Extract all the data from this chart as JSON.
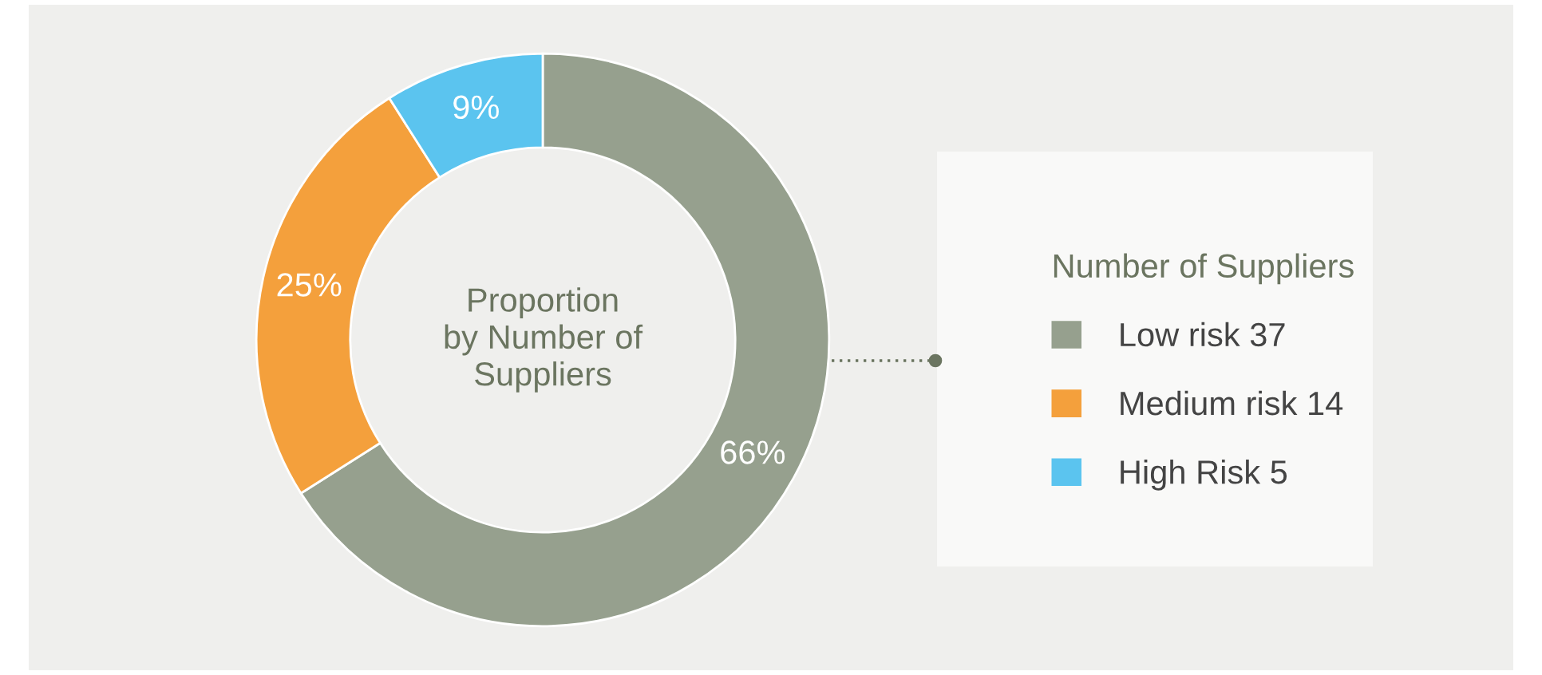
{
  "chart_data": {
    "type": "donut",
    "title": "Proportion\nby Number of\nSuppliers",
    "legend_title": "Number of Suppliers",
    "categories": [
      "Low risk 37",
      "Medium risk 14",
      "High Risk 5"
    ],
    "values": [
      66,
      25,
      9
    ],
    "value_labels": [
      "66%",
      "25%",
      "9%"
    ],
    "colors": [
      "#96a08e",
      "#f4a03c",
      "#5bc4ef"
    ],
    "legend": "right"
  }
}
